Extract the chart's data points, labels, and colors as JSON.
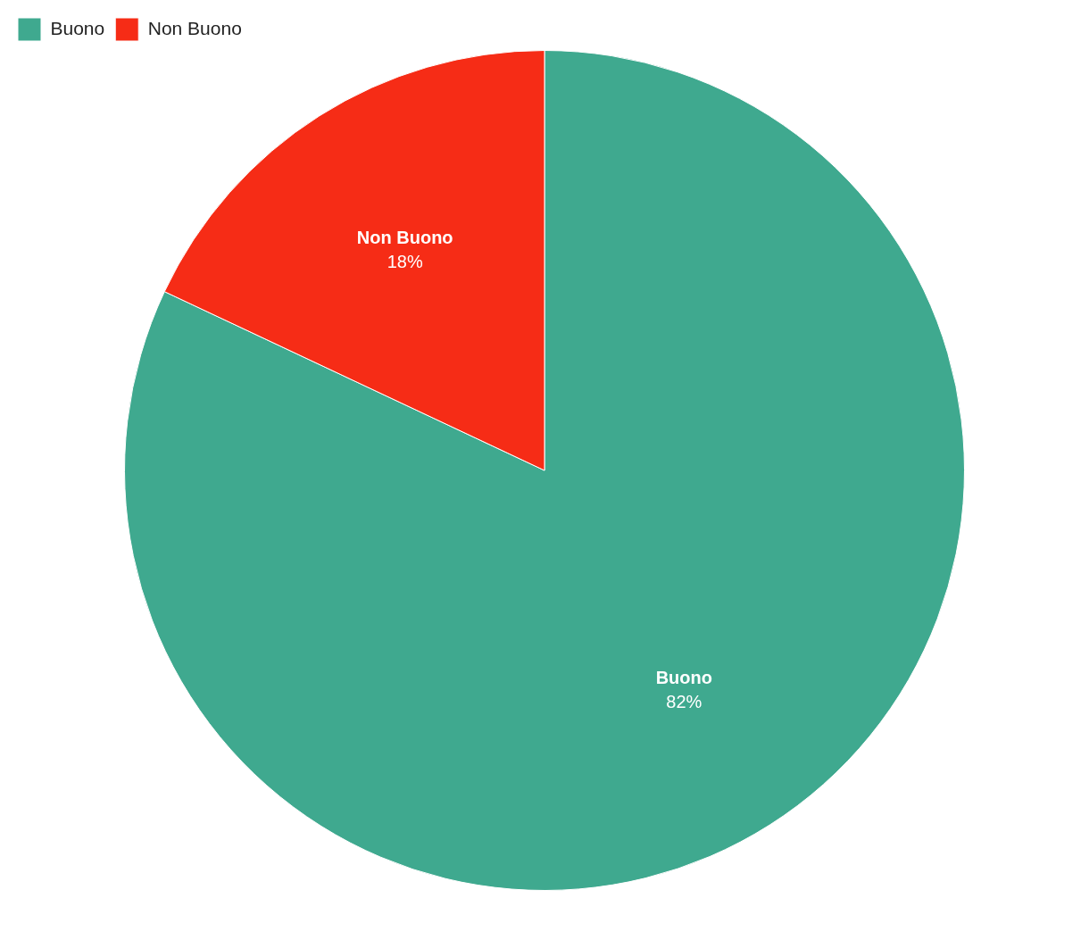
{
  "chart_data": {
    "type": "pie",
    "categories": [
      "Buono",
      "Non Buono"
    ],
    "values": [
      82,
      18
    ],
    "colors": [
      "#3fa98f",
      "#f62c16"
    ],
    "legend": "top left",
    "value_labels": [
      "82%",
      "18%"
    ]
  }
}
